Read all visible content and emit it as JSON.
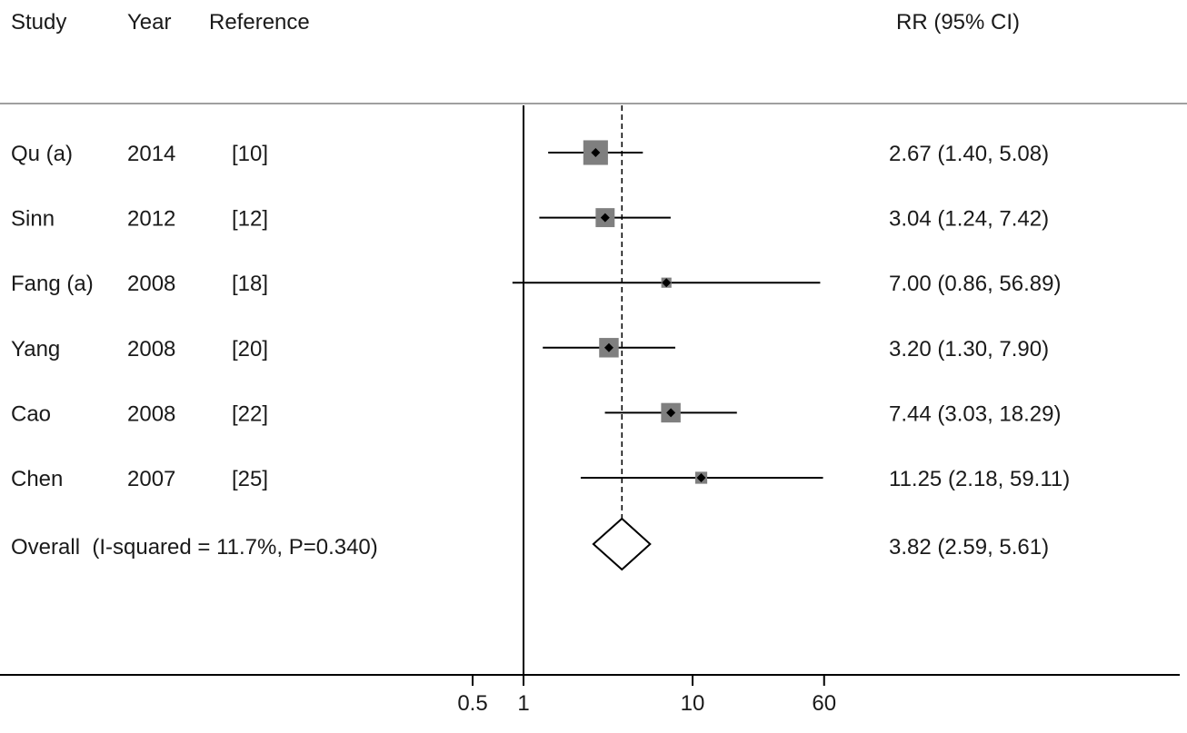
{
  "header": {
    "study": "Study",
    "year": "Year",
    "reference": "Reference",
    "effect": "RR (95% CI)"
  },
  "colors": {
    "box": "#7f7f7f",
    "line": "#000000",
    "rule": "#a0a0a0"
  },
  "chart_data": {
    "type": "forest",
    "scale": "log",
    "xlim": [
      0.5,
      60
    ],
    "xticks": [
      "0.5",
      "1",
      "10",
      "60"
    ],
    "xtick_values": [
      0.5,
      1,
      10,
      60
    ],
    "null_line": 1,
    "studies": [
      {
        "study": "Qu (a)",
        "year": "2014",
        "reference": "[10]",
        "rr": 2.67,
        "lo": 1.4,
        "hi": 5.08,
        "weight": 30.0,
        "label": "2.67 (1.40, 5.08)"
      },
      {
        "study": "Sinn",
        "year": "2012",
        "reference": "[12]",
        "rr": 3.04,
        "lo": 1.24,
        "hi": 7.42,
        "weight": 17.0,
        "label": "3.04 (1.24, 7.42)"
      },
      {
        "study": "Fang (a)",
        "year": "2008",
        "reference": "[18]",
        "rr": 7.0,
        "lo": 0.86,
        "hi": 56.89,
        "weight": 4.0,
        "label": "7.00 (0.86, 56.89)"
      },
      {
        "study": "Yang",
        "year": "2008",
        "reference": "[20]",
        "rr": 3.2,
        "lo": 1.3,
        "hi": 7.9,
        "weight": 18.0,
        "label": "3.20 (1.30, 7.90)"
      },
      {
        "study": "Cao",
        "year": "2008",
        "reference": "[22]",
        "rr": 7.44,
        "lo": 3.03,
        "hi": 18.29,
        "weight": 18.0,
        "label": "7.44 (3.03, 18.29)"
      },
      {
        "study": "Chen",
        "year": "2007",
        "reference": "[25]",
        "rr": 11.25,
        "lo": 2.18,
        "hi": 59.11,
        "weight": 6.0,
        "label": "11.25 (2.18, 59.11)"
      }
    ],
    "overall": {
      "label_text": "Overall  (I-squared = 11.7%, P=0.340)",
      "rr": 3.82,
      "lo": 2.59,
      "hi": 5.61,
      "label": "3.82 (2.59, 5.61)"
    }
  }
}
